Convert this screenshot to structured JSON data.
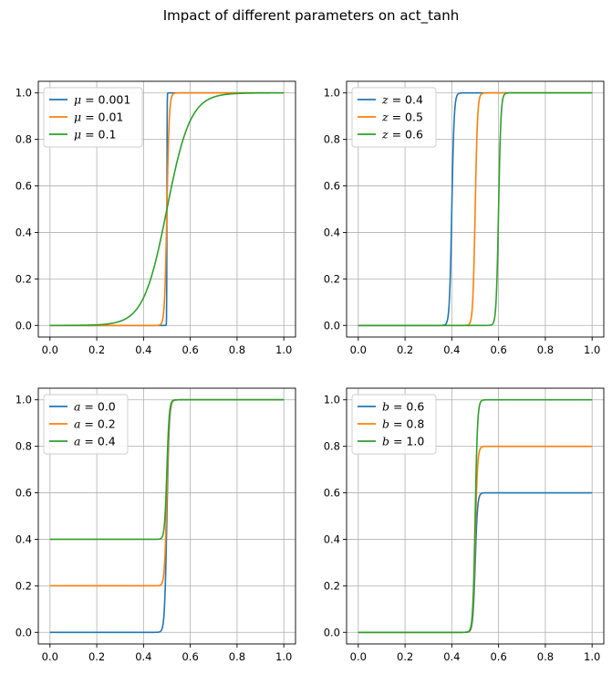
{
  "figure": {
    "title": "Impact of different parameters on act_tanh"
  },
  "chart_data": [
    {
      "type": "line",
      "xlim": [
        -0.05,
        1.05
      ],
      "ylim": [
        -0.05,
        1.05
      ],
      "xticks": [
        "0.0",
        "0.2",
        "0.4",
        "0.6",
        "0.8",
        "1.0"
      ],
      "yticks": [
        "0.0",
        "0.2",
        "0.4",
        "0.6",
        "0.8",
        "1.0"
      ],
      "grid": true,
      "legend_position": "upper-left",
      "series": [
        {
          "name": "μ = 0.001",
          "symbol": "μ",
          "value": "= 0.001",
          "color": "#1f77b4",
          "mu": 0.001,
          "z": 0.5,
          "a": 0.0,
          "b": 1.0
        },
        {
          "name": "μ = 0.01",
          "symbol": "μ",
          "value": "= 0.01",
          "color": "#ff7f0e",
          "mu": 0.01,
          "z": 0.5,
          "a": 0.0,
          "b": 1.0
        },
        {
          "name": "μ = 0.1",
          "symbol": "μ",
          "value": "= 0.1",
          "color": "#2ca02c",
          "mu": 0.1,
          "z": 0.5,
          "a": 0.0,
          "b": 1.0
        }
      ]
    },
    {
      "type": "line",
      "xlim": [
        -0.05,
        1.05
      ],
      "ylim": [
        -0.05,
        1.05
      ],
      "xticks": [
        "0.0",
        "0.2",
        "0.4",
        "0.6",
        "0.8",
        "1.0"
      ],
      "yticks": [
        "0.0",
        "0.2",
        "0.4",
        "0.6",
        "0.8",
        "1.0"
      ],
      "grid": true,
      "legend_position": "upper-left",
      "series": [
        {
          "name": "z = 0.4",
          "symbol": "z",
          "value": "= 0.4",
          "color": "#1f77b4",
          "mu": 0.01,
          "z": 0.4,
          "a": 0.0,
          "b": 1.0
        },
        {
          "name": "z = 0.5",
          "symbol": "z",
          "value": "= 0.5",
          "color": "#ff7f0e",
          "mu": 0.01,
          "z": 0.5,
          "a": 0.0,
          "b": 1.0
        },
        {
          "name": "z = 0.6",
          "symbol": "z",
          "value": "= 0.6",
          "color": "#2ca02c",
          "mu": 0.01,
          "z": 0.6,
          "a": 0.0,
          "b": 1.0
        }
      ]
    },
    {
      "type": "line",
      "xlim": [
        -0.05,
        1.05
      ],
      "ylim": [
        -0.05,
        1.05
      ],
      "xticks": [
        "0.0",
        "0.2",
        "0.4",
        "0.6",
        "0.8",
        "1.0"
      ],
      "yticks": [
        "0.0",
        "0.2",
        "0.4",
        "0.6",
        "0.8",
        "1.0"
      ],
      "grid": true,
      "legend_position": "upper-left",
      "series": [
        {
          "name": "a = 0.0",
          "symbol": "a",
          "value": "= 0.0",
          "color": "#1f77b4",
          "mu": 0.01,
          "z": 0.5,
          "a": 0.0,
          "b": 1.0
        },
        {
          "name": "a = 0.2",
          "symbol": "a",
          "value": "= 0.2",
          "color": "#ff7f0e",
          "mu": 0.01,
          "z": 0.5,
          "a": 0.2,
          "b": 1.0
        },
        {
          "name": "a = 0.4",
          "symbol": "a",
          "value": "= 0.4",
          "color": "#2ca02c",
          "mu": 0.01,
          "z": 0.5,
          "a": 0.4,
          "b": 1.0
        }
      ]
    },
    {
      "type": "line",
      "xlim": [
        -0.05,
        1.05
      ],
      "ylim": [
        -0.05,
        1.05
      ],
      "xticks": [
        "0.0",
        "0.2",
        "0.4",
        "0.6",
        "0.8",
        "1.0"
      ],
      "yticks": [
        "0.0",
        "0.2",
        "0.4",
        "0.6",
        "0.8",
        "1.0"
      ],
      "grid": true,
      "legend_position": "upper-left",
      "series": [
        {
          "name": "b = 0.6",
          "symbol": "b",
          "value": "= 0.6",
          "color": "#1f77b4",
          "mu": 0.01,
          "z": 0.5,
          "a": 0.0,
          "b": 0.6
        },
        {
          "name": "b = 0.8",
          "symbol": "b",
          "value": "= 0.8",
          "color": "#ff7f0e",
          "mu": 0.01,
          "z": 0.5,
          "a": 0.0,
          "b": 0.8
        },
        {
          "name": "b = 1.0",
          "symbol": "b",
          "value": "= 1.0",
          "color": "#2ca02c",
          "mu": 0.01,
          "z": 0.5,
          "a": 0.0,
          "b": 1.0
        }
      ]
    }
  ]
}
